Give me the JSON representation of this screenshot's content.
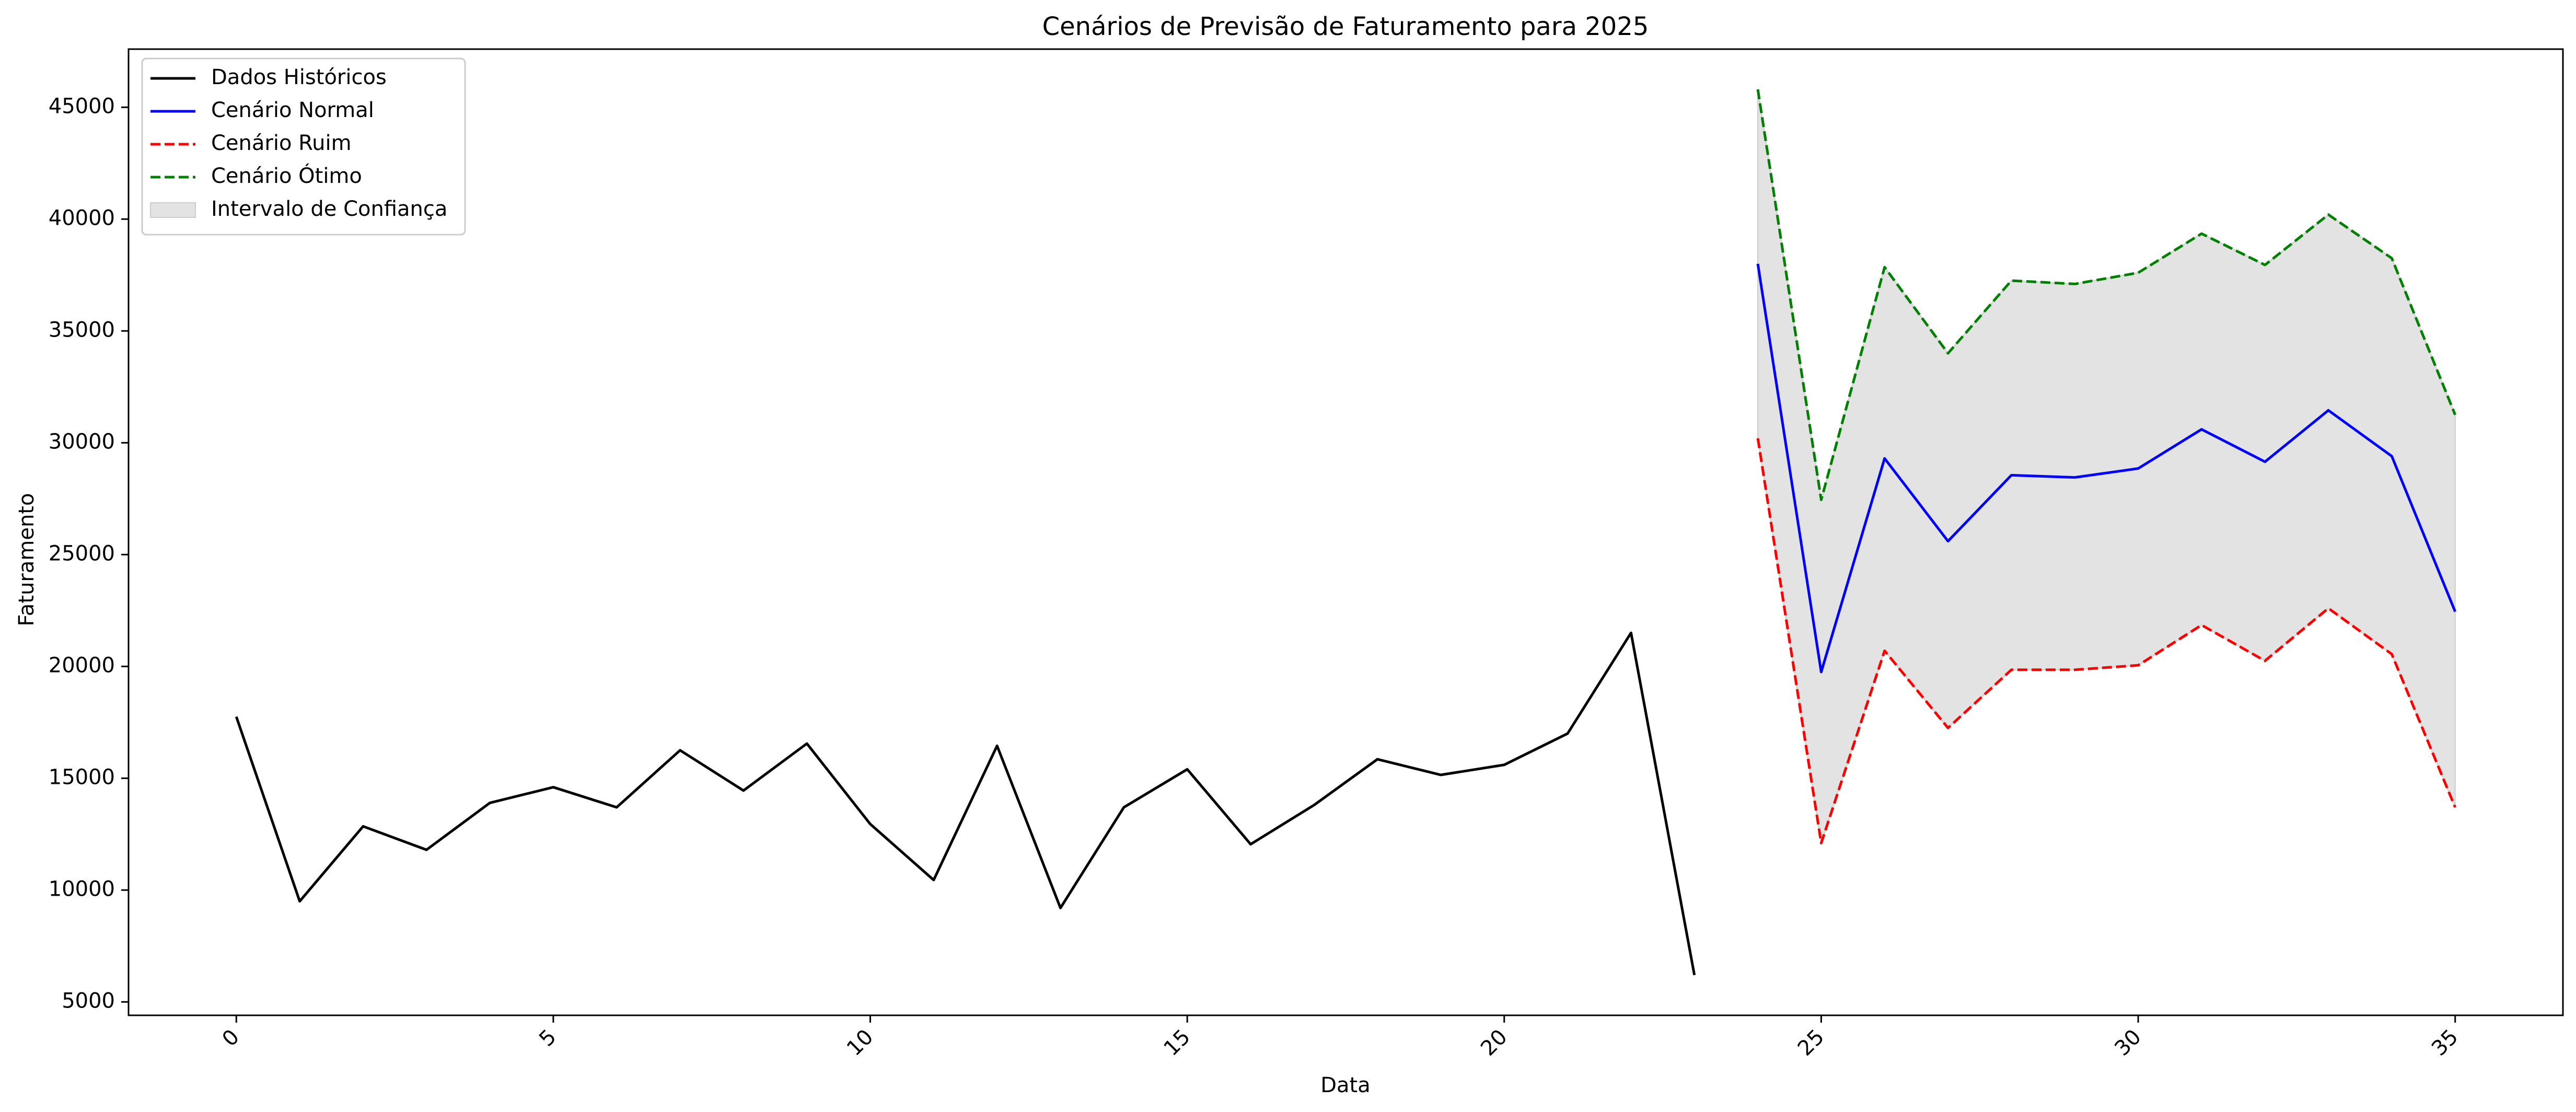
{
  "chart_data": {
    "type": "line",
    "title": "Cenários de Previsão de Faturamento para 2025",
    "xlabel": "Data",
    "ylabel": "Faturamento",
    "xlim": [
      -1.7,
      36.7
    ],
    "ylim": [
      4400,
      47600
    ],
    "x_ticks": [
      0,
      5,
      10,
      15,
      20,
      25,
      30,
      35
    ],
    "y_ticks": [
      5000,
      10000,
      15000,
      20000,
      25000,
      30000,
      35000,
      40000,
      45000
    ],
    "x_tick_rotation": 45,
    "grid": false,
    "legend_position": "top-left",
    "series": [
      {
        "name": "Dados Históricos",
        "color": "#000000",
        "style": "solid",
        "x": [
          0,
          1,
          2,
          3,
          4,
          5,
          6,
          7,
          8,
          9,
          10,
          11,
          12,
          13,
          14,
          15,
          16,
          17,
          18,
          19,
          20,
          21,
          22,
          23
        ],
        "values": [
          17750,
          9500,
          12850,
          11800,
          13900,
          14600,
          13700,
          16250,
          14450,
          16550,
          12950,
          10450,
          16450,
          9200,
          13700,
          15400,
          12050,
          13800,
          15850,
          15150,
          15600,
          17000,
          21500,
          6200
        ]
      },
      {
        "name": "Cenário Normal",
        "color": "#0000ff",
        "style": "solid",
        "x": [
          24,
          25,
          26,
          27,
          28,
          29,
          30,
          31,
          32,
          33,
          34,
          35
        ],
        "values": [
          38000,
          19750,
          29300,
          25600,
          28550,
          28450,
          28850,
          30600,
          29150,
          31450,
          29400,
          22450
        ]
      },
      {
        "name": "Cenário Ruim",
        "color": "#ff0000",
        "style": "dashed",
        "x": [
          24,
          25,
          26,
          27,
          28,
          29,
          30,
          31,
          32,
          33,
          34,
          35
        ],
        "values": [
          30200,
          12100,
          20700,
          17250,
          19850,
          19850,
          20050,
          21850,
          20250,
          22600,
          20550,
          13700
        ]
      },
      {
        "name": "Cenário Ótimo",
        "color": "#008000",
        "style": "dashed",
        "x": [
          24,
          25,
          26,
          27,
          28,
          29,
          30,
          31,
          32,
          33,
          34,
          35
        ],
        "values": [
          45800,
          27450,
          37850,
          34000,
          37250,
          37100,
          37600,
          39350,
          37950,
          40200,
          38250,
          31250
        ]
      }
    ],
    "band": {
      "name": "Intervalo de Confiança",
      "color": "#cccccc",
      "opacity": 0.55,
      "lower_series": "Cenário Ruim",
      "upper_series": "Cenário Ótimo"
    }
  }
}
